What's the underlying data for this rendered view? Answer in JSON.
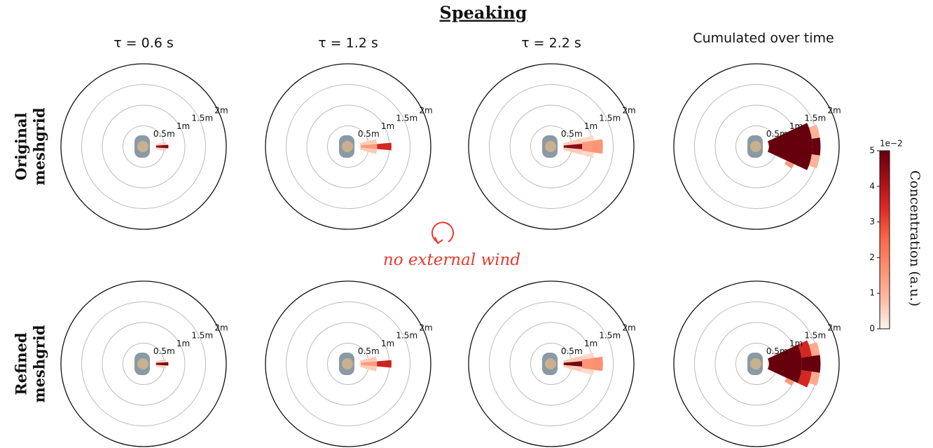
{
  "title": "Speaking",
  "columns": [
    "τ = 0.6 s",
    "τ = 1.2 s",
    "τ = 2.2 s",
    "Cumulated over time"
  ],
  "rows": [
    [
      "Original",
      "meshgrid"
    ],
    [
      "Refined",
      "meshgrid"
    ]
  ],
  "annotation": "no external wind",
  "colorbar": {
    "label": "Concentration (a.u.)",
    "offset": "1e−2",
    "lim": [
      0,
      5
    ],
    "ticks": [
      0,
      1,
      2,
      3,
      4,
      5
    ],
    "colormap": "Reds"
  },
  "chart_data": [
    {
      "type": "polar",
      "rlim": [
        0,
        2
      ],
      "rticks": [
        {
          "value": 0.5,
          "label": "0.5m"
        },
        {
          "value": 1,
          "label": "1m"
        },
        {
          "value": 1.5,
          "label": "1.5m"
        },
        {
          "value": 2,
          "label": "2m"
        }
      ],
      "cells": [
        {
          "r": [
            0.3,
            0.55
          ],
          "theta": [
            -12,
            -4
          ],
          "value": 0.5
        },
        {
          "r": [
            0.3,
            0.55
          ],
          "theta": [
            4,
            12
          ],
          "value": 0.5
        },
        {
          "r": [
            0.3,
            0.6
          ],
          "theta": [
            -4,
            4
          ],
          "value": 4.5
        }
      ]
    },
    {
      "type": "polar",
      "rlim": [
        0,
        2
      ],
      "rticks": [
        {
          "value": 0.5,
          "label": "0.5m"
        },
        {
          "value": 1,
          "label": "1m"
        },
        {
          "value": 1.5,
          "label": "1.5m"
        },
        {
          "value": 2,
          "label": "2m"
        }
      ],
      "cells": [
        {
          "r": [
            0.3,
            0.7
          ],
          "theta": [
            -15,
            -5
          ],
          "value": 0.6
        },
        {
          "r": [
            0.3,
            0.7
          ],
          "theta": [
            5,
            15
          ],
          "value": 0.6
        },
        {
          "r": [
            0.3,
            0.7
          ],
          "theta": [
            -5,
            5
          ],
          "value": 1.5
        },
        {
          "r": [
            0.7,
            1.05
          ],
          "theta": [
            -5,
            5
          ],
          "value": 3.5
        }
      ]
    },
    {
      "type": "polar",
      "rlim": [
        0,
        2
      ],
      "rticks": [
        {
          "value": 0.5,
          "label": "0.5m"
        },
        {
          "value": 1,
          "label": "1m"
        },
        {
          "value": 1.5,
          "label": "1.5m"
        },
        {
          "value": 2,
          "label": "2m"
        }
      ],
      "cells": [
        {
          "r": [
            0.3,
            0.75
          ],
          "theta": [
            -15,
            -5
          ],
          "value": 0.6
        },
        {
          "r": [
            0.3,
            0.75
          ],
          "theta": [
            5,
            15
          ],
          "value": 0.6
        },
        {
          "r": [
            0.3,
            0.75
          ],
          "theta": [
            -5,
            5
          ],
          "value": 4.5
        },
        {
          "r": [
            0.75,
            1.0
          ],
          "theta": [
            -8,
            8
          ],
          "value": 1.5
        },
        {
          "r": [
            1.0,
            1.25
          ],
          "theta": [
            -8,
            8
          ],
          "value": 1.6
        },
        {
          "r": [
            0.75,
            1.05
          ],
          "theta": [
            -15,
            -8
          ],
          "value": 0.4
        },
        {
          "r": [
            0.75,
            1.05
          ],
          "theta": [
            8,
            15
          ],
          "value": 0.4
        }
      ]
    },
    {
      "type": "polar",
      "rlim": [
        0,
        2
      ],
      "rticks": [
        {
          "value": 0.5,
          "label": "0.5m"
        },
        {
          "value": 1,
          "label": "1m"
        },
        {
          "value": 1.5,
          "label": "1.5m"
        },
        {
          "value": 2,
          "label": "2m"
        }
      ],
      "cells": [
        {
          "r": [
            0.3,
            1.35
          ],
          "theta": [
            -25,
            25
          ],
          "value": 5
        },
        {
          "r": [
            1.35,
            1.55
          ],
          "theta": [
            -8,
            8
          ],
          "value": 5
        },
        {
          "r": [
            1.35,
            1.55
          ],
          "theta": [
            8,
            20
          ],
          "value": 1
        },
        {
          "r": [
            1.35,
            1.55
          ],
          "theta": [
            -20,
            -8
          ],
          "value": 1
        },
        {
          "r": [
            0.8,
            1.0
          ],
          "theta": [
            -32,
            -25
          ],
          "value": 1.5
        }
      ]
    },
    {
      "type": "polar",
      "rlim": [
        0,
        2
      ],
      "rticks": [
        {
          "value": 0.5,
          "label": "0.5m"
        },
        {
          "value": 1,
          "label": "1m"
        },
        {
          "value": 1.5,
          "label": "1.5m"
        },
        {
          "value": 2,
          "label": "2m"
        }
      ],
      "cells": [
        {
          "r": [
            0.3,
            0.55
          ],
          "theta": [
            -12,
            -4
          ],
          "value": 0.5
        },
        {
          "r": [
            0.3,
            0.55
          ],
          "theta": [
            4,
            12
          ],
          "value": 0.5
        },
        {
          "r": [
            0.3,
            0.6
          ],
          "theta": [
            -4,
            4
          ],
          "value": 4.7
        }
      ]
    },
    {
      "type": "polar",
      "rlim": [
        0,
        2
      ],
      "rticks": [
        {
          "value": 0.5,
          "label": "0.5m"
        },
        {
          "value": 1,
          "label": "1m"
        },
        {
          "value": 1.5,
          "label": "1.5m"
        },
        {
          "value": 2,
          "label": "2m"
        }
      ],
      "cells": [
        {
          "r": [
            0.3,
            0.7
          ],
          "theta": [
            -15,
            -5
          ],
          "value": 0.6
        },
        {
          "r": [
            0.3,
            0.7
          ],
          "theta": [
            5,
            15
          ],
          "value": 0.6
        },
        {
          "r": [
            0.3,
            0.7
          ],
          "theta": [
            -5,
            5
          ],
          "value": 1.5
        },
        {
          "r": [
            0.7,
            1.05
          ],
          "theta": [
            -5,
            5
          ],
          "value": 3.6
        }
      ]
    },
    {
      "type": "polar",
      "rlim": [
        0,
        2
      ],
      "rticks": [
        {
          "value": 0.5,
          "label": "0.5m"
        },
        {
          "value": 1,
          "label": "1m"
        },
        {
          "value": 1.5,
          "label": "1.5m"
        },
        {
          "value": 2,
          "label": "2m"
        }
      ],
      "cells": [
        {
          "r": [
            0.3,
            0.75
          ],
          "theta": [
            -15,
            -5
          ],
          "value": 0.6
        },
        {
          "r": [
            0.3,
            0.75
          ],
          "theta": [
            5,
            15
          ],
          "value": 0.6
        },
        {
          "r": [
            0.3,
            0.75
          ],
          "theta": [
            -5,
            5
          ],
          "value": 4.8
        },
        {
          "r": [
            0.75,
            1.0
          ],
          "theta": [
            -8,
            8
          ],
          "value": 1.6
        },
        {
          "r": [
            1.0,
            1.25
          ],
          "theta": [
            -8,
            8
          ],
          "value": 1.7
        },
        {
          "r": [
            0.75,
            1.05
          ],
          "theta": [
            -15,
            -8
          ],
          "value": 0.4
        },
        {
          "r": [
            0.75,
            1.05
          ],
          "theta": [
            8,
            15
          ],
          "value": 0.4
        }
      ]
    },
    {
      "type": "polar",
      "rlim": [
        0,
        2
      ],
      "rticks": [
        {
          "value": 0.5,
          "label": "0.5m"
        },
        {
          "value": 1,
          "label": "1m"
        },
        {
          "value": 1.5,
          "label": "1.5m"
        },
        {
          "value": 2,
          "label": "2m"
        }
      ],
      "cells": [
        {
          "r": [
            0.3,
            1.1
          ],
          "theta": [
            -25,
            25
          ],
          "value": 5
        },
        {
          "r": [
            1.1,
            1.35
          ],
          "theta": [
            -25,
            -8
          ],
          "value": 3.5
        },
        {
          "r": [
            1.1,
            1.35
          ],
          "theta": [
            8,
            25
          ],
          "value": 3.5
        },
        {
          "r": [
            1.1,
            1.55
          ],
          "theta": [
            -8,
            8
          ],
          "value": 5
        },
        {
          "r": [
            1.35,
            1.55
          ],
          "theta": [
            8,
            20
          ],
          "value": 1.2
        },
        {
          "r": [
            1.35,
            1.55
          ],
          "theta": [
            -20,
            -8
          ],
          "value": 1.2
        },
        {
          "r": [
            0.8,
            1.0
          ],
          "theta": [
            -32,
            -25
          ],
          "value": 1.5
        }
      ]
    }
  ]
}
